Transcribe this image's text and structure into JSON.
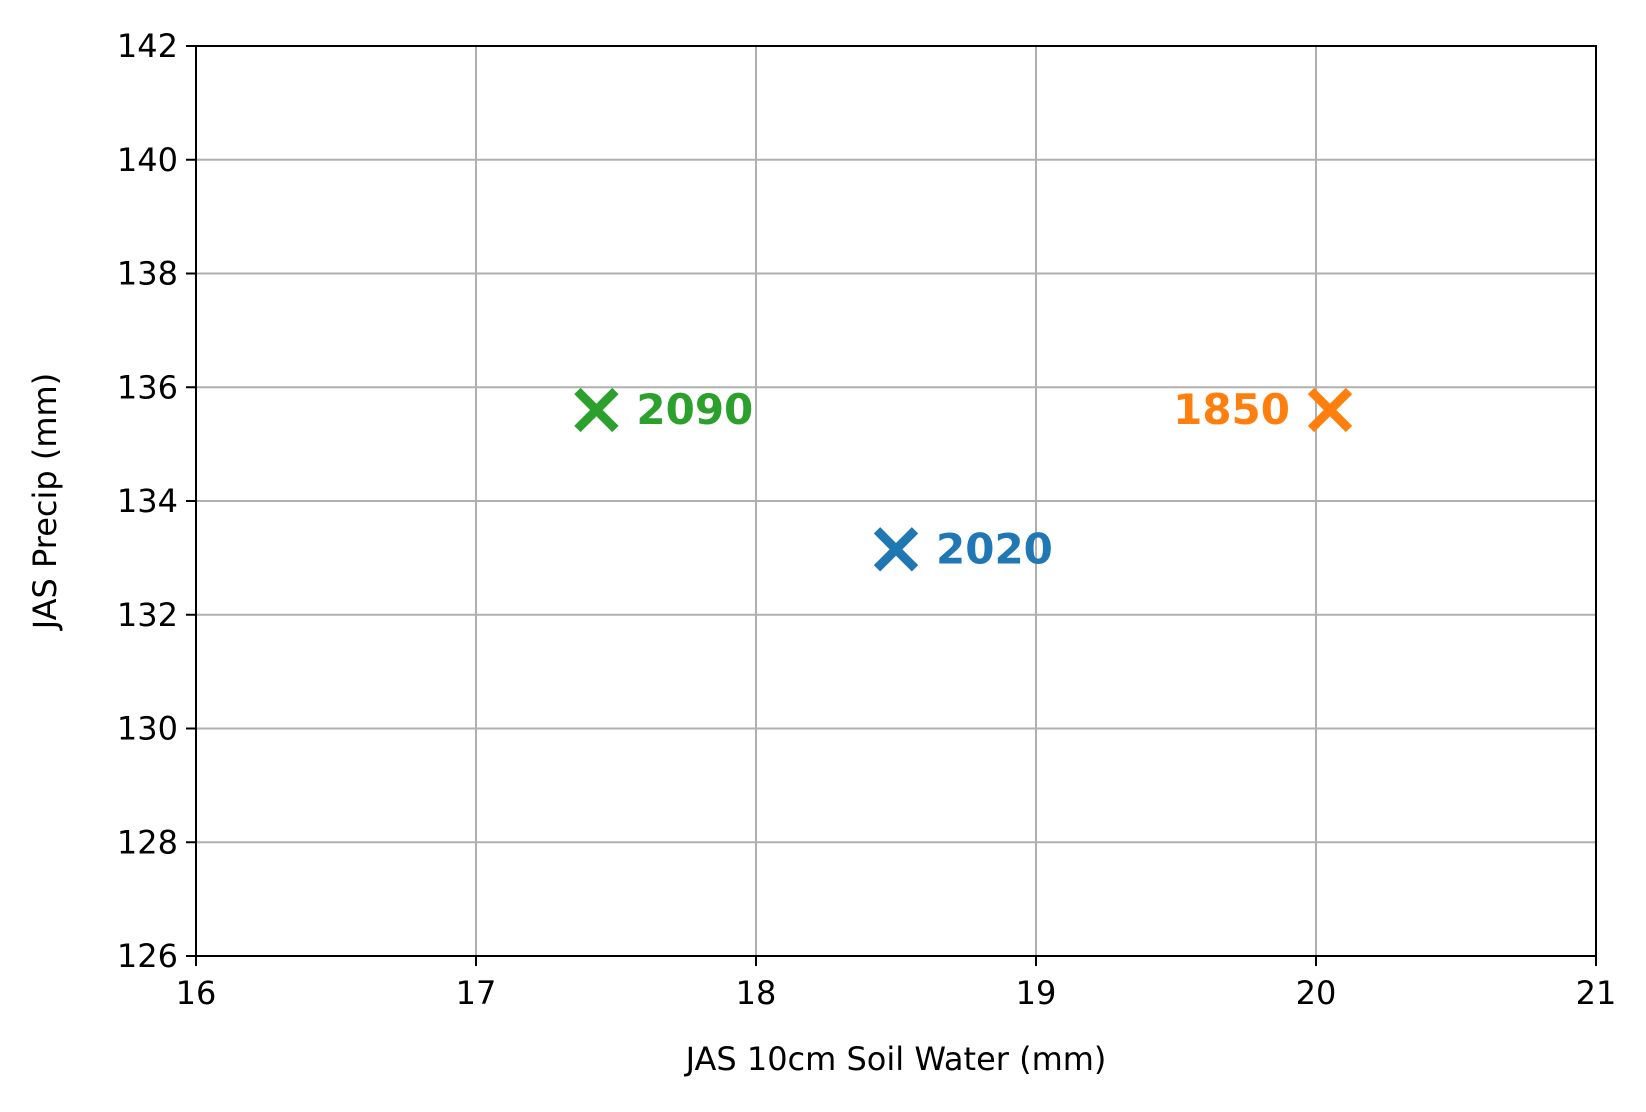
{
  "chart_data": {
    "type": "scatter",
    "title": "",
    "xlabel": "JAS 10cm Soil Water (mm)",
    "ylabel": "JAS Precip (mm)",
    "xlim": [
      16,
      21
    ],
    "ylim": [
      126,
      142
    ],
    "xticks": [
      16,
      17,
      18,
      19,
      20,
      21
    ],
    "yticks": [
      126,
      128,
      130,
      132,
      134,
      136,
      138,
      140,
      142
    ],
    "xtick_labels": [
      "16",
      "17",
      "18",
      "19",
      "20",
      "21"
    ],
    "ytick_labels": [
      "126",
      "128",
      "130",
      "132",
      "134",
      "136",
      "138",
      "140",
      "142"
    ],
    "grid": true,
    "marker": "x",
    "points": [
      {
        "label": "1850",
        "x": 20.05,
        "y": 135.6,
        "color": "#ff7f0e",
        "label_side": "left"
      },
      {
        "label": "2020",
        "x": 18.5,
        "y": 133.15,
        "color": "#1f77b4",
        "label_side": "right"
      },
      {
        "label": "2090",
        "x": 17.43,
        "y": 135.6,
        "color": "#2ca02c",
        "label_side": "right"
      }
    ]
  }
}
